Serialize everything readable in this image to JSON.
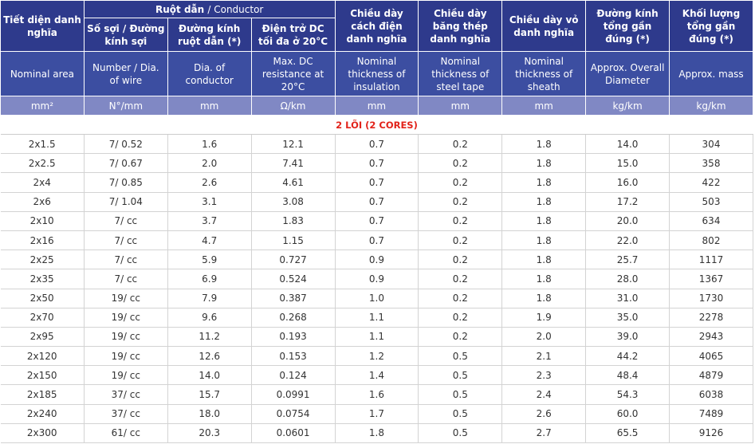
{
  "header": {
    "group": {
      "vi": "Ruột dẫn",
      "en": "/ Conductor"
    },
    "columns_vi": [
      "Tiết diện danh nghĩa",
      "Số sợi / Đường kính sợi",
      "Đường kính ruột dẫn (*)",
      "Điện trở DC tối đa ở 20°C",
      "Chiều dày cách điện danh nghĩa",
      "Chiều dày băng thép danh nghĩa",
      "Chiều dày vỏ danh nghĩa",
      "Đường kính tổng gần đúng (*)",
      "Khối lượng tổng gần đúng (*)"
    ],
    "columns_en": [
      "Nominal area",
      "Number / Dia. of wire",
      "Dia. of conductor",
      "Max. DC resistance at 20°C",
      "Nominal thickness of insulation",
      "Nominal thickness of steel tape",
      "Nominal thickness of sheath",
      "Approx. Overall Diameter",
      "Approx. mass"
    ],
    "units": [
      "mm²",
      "N°/mm",
      "mm",
      "Ω/km",
      "mm",
      "mm",
      "mm",
      "kg/km",
      "kg/km"
    ]
  },
  "section": "2 LÕI (2 CORES)",
  "rows": [
    [
      "2x1.5",
      "7/ 0.52",
      "1.6",
      "12.1",
      "0.7",
      "0.2",
      "1.8",
      "14.0",
      "304"
    ],
    [
      "2x2.5",
      "7/ 0.67",
      "2.0",
      "7.41",
      "0.7",
      "0.2",
      "1.8",
      "15.0",
      "358"
    ],
    [
      "2x4",
      "7/ 0.85",
      "2.6",
      "4.61",
      "0.7",
      "0.2",
      "1.8",
      "16.0",
      "422"
    ],
    [
      "2x6",
      "7/ 1.04",
      "3.1",
      "3.08",
      "0.7",
      "0.2",
      "1.8",
      "17.2",
      "503"
    ],
    [
      "2x10",
      "7/ cc",
      "3.7",
      "1.83",
      "0.7",
      "0.2",
      "1.8",
      "20.0",
      "634"
    ],
    [
      "2x16",
      "7/ cc",
      "4.7",
      "1.15",
      "0.7",
      "0.2",
      "1.8",
      "22.0",
      "802"
    ],
    [
      "2x25",
      "7/ cc",
      "5.9",
      "0.727",
      "0.9",
      "0.2",
      "1.8",
      "25.7",
      "1117"
    ],
    [
      "2x35",
      "7/ cc",
      "6.9",
      "0.524",
      "0.9",
      "0.2",
      "1.8",
      "28.0",
      "1367"
    ],
    [
      "2x50",
      "19/ cc",
      "7.9",
      "0.387",
      "1.0",
      "0.2",
      "1.8",
      "31.0",
      "1730"
    ],
    [
      "2x70",
      "19/ cc",
      "9.6",
      "0.268",
      "1.1",
      "0.2",
      "1.9",
      "35.0",
      "2278"
    ],
    [
      "2x95",
      "19/ cc",
      "11.2",
      "0.193",
      "1.1",
      "0.2",
      "2.0",
      "39.0",
      "2943"
    ],
    [
      "2x120",
      "19/ cc",
      "12.6",
      "0.153",
      "1.2",
      "0.5",
      "2.1",
      "44.2",
      "4065"
    ],
    [
      "2x150",
      "19/ cc",
      "14.0",
      "0.124",
      "1.4",
      "0.5",
      "2.3",
      "48.4",
      "4879"
    ],
    [
      "2x185",
      "37/ cc",
      "15.7",
      "0.0991",
      "1.6",
      "0.5",
      "2.4",
      "54.3",
      "6038"
    ],
    [
      "2x240",
      "37/ cc",
      "18.0",
      "0.0754",
      "1.7",
      "0.5",
      "2.6",
      "60.0",
      "7489"
    ],
    [
      "2x300",
      "61/ cc",
      "20.3",
      "0.0601",
      "1.8",
      "0.5",
      "2.7",
      "65.5",
      "9126"
    ]
  ]
}
